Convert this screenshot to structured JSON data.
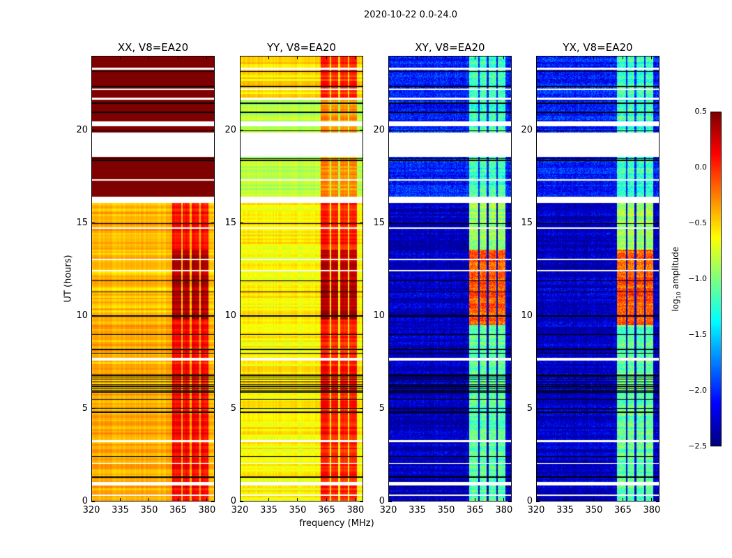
{
  "figure": {
    "suptitle": "2020-10-22 0.0-24.0"
  },
  "chart_data": {
    "type": "heatmap",
    "title": "2020-10-22 0.0-24.0",
    "xlabel": "frequency (MHz)",
    "ylabel": "UT (hours)",
    "xlim": [
      320,
      384
    ],
    "ylim": [
      0,
      24
    ],
    "xticks": [
      "320",
      "335",
      "350",
      "365",
      "380"
    ],
    "yticks": [
      "0",
      "5",
      "10",
      "15",
      "20"
    ],
    "colorbar": {
      "label": "log10 amplitude",
      "label_main": "log",
      "label_sub": "10",
      "label_rest": " amplitude",
      "colormap": "jet",
      "range": [
        -2.5,
        0.5
      ],
      "ticks": [
        "0.5",
        "0.0",
        "−0.5",
        "−1.0",
        "−1.5",
        "−2.0",
        "−2.5"
      ]
    },
    "bands_mhz": [
      [
        362,
        366.5
      ],
      [
        367.5,
        371
      ],
      [
        372,
        376
      ],
      [
        377,
        381
      ]
    ],
    "flagged_hours": [
      [
        0.85,
        1.05
      ],
      [
        16.1,
        16.45
      ],
      [
        18.6,
        19.9
      ],
      [
        20.25,
        20.5
      ],
      [
        17.3,
        17.4
      ],
      [
        23.3,
        23.4
      ],
      [
        21.7,
        21.8
      ],
      [
        12.4,
        12.5
      ],
      [
        13.0,
        13.08
      ],
      [
        3.2,
        3.28
      ],
      [
        7.6,
        7.75
      ],
      [
        14.7,
        14.78
      ],
      [
        22.2,
        22.3
      ],
      [
        2.0,
        2.07
      ],
      [
        0.3,
        0.36
      ]
    ],
    "dark_lines_hours": [
      6.0,
      6.1,
      6.2,
      6.3,
      6.45,
      6.6,
      6.7,
      6.8,
      5.9,
      5.5,
      5.0,
      4.8,
      2.4,
      1.3,
      8.0,
      8.2,
      9.0,
      10.0,
      11.3,
      11.9,
      15.0,
      18.4,
      18.5,
      20.0,
      21.0,
      21.5,
      22.4,
      23.2
    ],
    "panels": [
      {
        "title": "XX, V8=EA20",
        "segments": [
          {
            "hours": [
              0,
              16.1
            ],
            "base": -0.4,
            "band": 0.1
          },
          {
            "hours": [
              9.8,
              13.6
            ],
            "base": -0.45,
            "band": 0.35
          },
          {
            "hours": [
              16.1,
              24
            ],
            "base": 0.5,
            "band": 0.5
          }
        ]
      },
      {
        "title": "YY, V8=EA20",
        "segments": [
          {
            "hours": [
              0,
              16.1
            ],
            "base": -0.6,
            "band": 0.05
          },
          {
            "hours": [
              9.8,
              13.6
            ],
            "base": -0.6,
            "band": 0.35
          },
          {
            "hours": [
              16.1,
              21.8
            ],
            "base": -0.85,
            "band": -0.3
          },
          {
            "hours": [
              21.8,
              24
            ],
            "base": -0.55,
            "band": 0.0
          }
        ]
      },
      {
        "title": "XY, V8=EA20",
        "segments": [
          {
            "hours": [
              0,
              9.5
            ],
            "base": -2.3,
            "band": -1.1
          },
          {
            "hours": [
              9.5,
              13.6
            ],
            "base": -2.3,
            "band": -0.15
          },
          {
            "hours": [
              13.6,
              16.1
            ],
            "base": -2.3,
            "band": -0.9
          },
          {
            "hours": [
              16.1,
              24
            ],
            "base": -2.05,
            "band": -1.2
          }
        ]
      },
      {
        "title": "YX, V8=EA20",
        "segments": [
          {
            "hours": [
              0,
              9.5
            ],
            "base": -2.3,
            "band": -1.1
          },
          {
            "hours": [
              9.5,
              13.6
            ],
            "base": -2.3,
            "band": -0.15
          },
          {
            "hours": [
              13.6,
              16.1
            ],
            "base": -2.3,
            "band": -0.9
          },
          {
            "hours": [
              16.1,
              24
            ],
            "base": -2.05,
            "band": -1.2
          }
        ]
      }
    ]
  }
}
